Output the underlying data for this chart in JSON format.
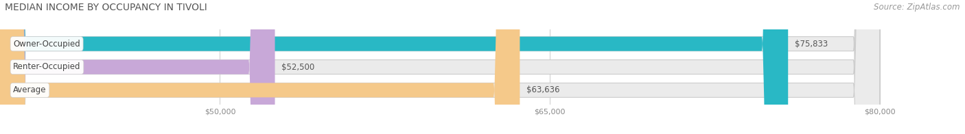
{
  "title": "MEDIAN INCOME BY OCCUPANCY IN TIVOLI",
  "source": "Source: ZipAtlas.com",
  "categories": [
    "Owner-Occupied",
    "Renter-Occupied",
    "Average"
  ],
  "values": [
    75833,
    52500,
    63636
  ],
  "bar_colors": [
    "#29b8c5",
    "#c8a8d8",
    "#f5c98a"
  ],
  "bar_bg_color": "#ebebeb",
  "label_values": [
    "$75,833",
    "$52,500",
    "$63,636"
  ],
  "xmin": 40000,
  "xmax": 80000,
  "xlim_right": 83000,
  "xticks": [
    50000,
    65000,
    80000
  ],
  "xtick_labels": [
    "$50,000",
    "$65,000",
    "$80,000"
  ],
  "title_fontsize": 10,
  "source_fontsize": 8.5,
  "bar_label_fontsize": 8.5,
  "cat_label_fontsize": 8.5,
  "bar_height": 0.62,
  "bg_color": "#ffffff"
}
